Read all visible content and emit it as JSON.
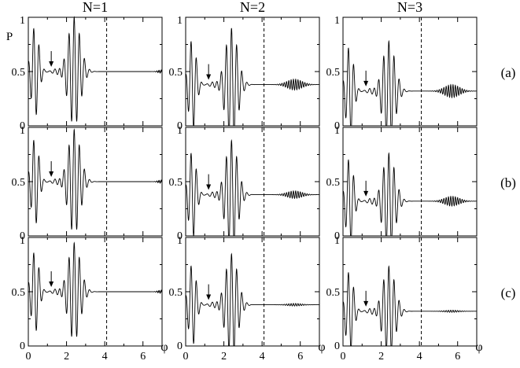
{
  "chart_data": {
    "type": "line",
    "title": "",
    "ylabel": "P",
    "xlabel": "φ",
    "xlim": [
      0,
      7
    ],
    "ylim": [
      0,
      1
    ],
    "xticks": [
      0,
      2,
      4,
      6
    ],
    "yticks": [
      0,
      0.5,
      1
    ],
    "xtick_labels": [
      "0",
      "2",
      "4",
      "6"
    ],
    "ytick_labels": [
      "0",
      "0.5",
      "1"
    ],
    "dashed_line_x": 4.1,
    "column_titles": [
      "N=1",
      "N=2",
      "N=3"
    ],
    "row_labels": [
      "(a)",
      "(b)",
      "(c)"
    ],
    "columns": [
      {
        "N": 1,
        "baseline": 0.5,
        "arrow_x": 1.2,
        "main_packet_peak": 1.0,
        "main_packet_trough": 0.02
      },
      {
        "N": 2,
        "baseline": 0.38,
        "arrow_x": 1.2,
        "main_packet_peak": 0.9,
        "main_packet_trough": 0.0,
        "revival_center": 5.7
      },
      {
        "N": 3,
        "baseline": 0.32,
        "arrow_x": 1.2,
        "main_packet_peak": 0.9,
        "main_packet_trough": 0.0,
        "revival_center": 5.7
      }
    ],
    "rows": [
      {
        "label": "(a)",
        "peak_scale": 1.0,
        "revival_amplitude": [
          0.0,
          0.05,
          0.06
        ]
      },
      {
        "label": "(b)",
        "peak_scale": 0.96,
        "revival_amplitude": [
          0.0,
          0.035,
          0.045
        ]
      },
      {
        "label": "(c)",
        "peak_scale": 0.9,
        "revival_amplitude": [
          0.0,
          0.012,
          0.01
        ]
      }
    ]
  }
}
